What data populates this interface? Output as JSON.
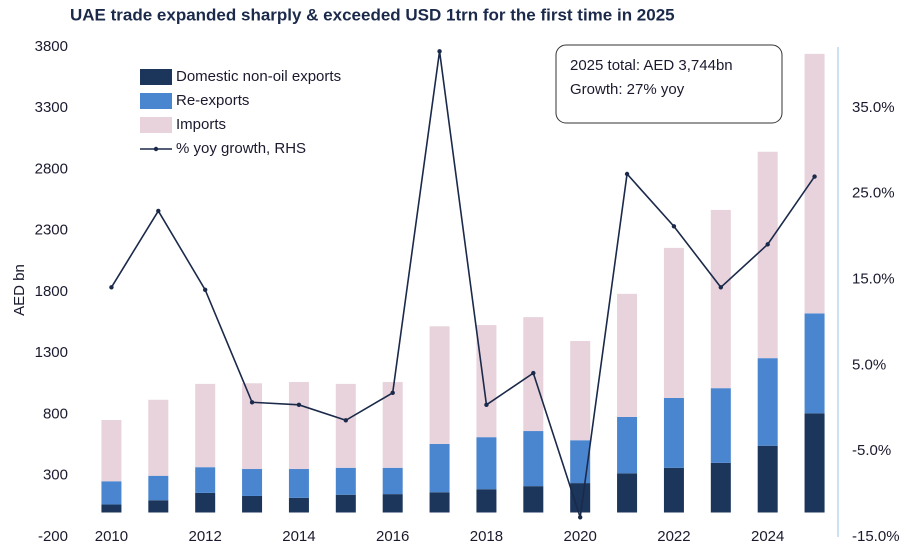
{
  "chart_data": {
    "type": "bar",
    "title": "UAE trade expanded sharply & exceeded USD 1trn for the first time in 2025",
    "ylabel": "AED bn",
    "annotation": [
      "2025 total: AED 3,744bn",
      "Growth: 27% yoy"
    ],
    "categories": [
      "2010",
      null,
      "2012",
      null,
      "2014",
      null,
      "2016",
      null,
      "2018",
      null,
      "2020",
      null,
      "2022",
      null,
      "2024",
      null
    ],
    "stacked": true,
    "legend": "upper left",
    "series": [
      {
        "name": "Domestic non-oil exports",
        "color": "#1b355b",
        "values": [
          65,
          100,
          160,
          135,
          120,
          145,
          150,
          165,
          190,
          215,
          240,
          320,
          365,
          405,
          545,
          810
        ]
      },
      {
        "name": "Re-exports",
        "color": "#4a86d0",
        "values": [
          190,
          200,
          210,
          220,
          235,
          220,
          215,
          395,
          425,
          450,
          350,
          460,
          570,
          610,
          715,
          815
        ]
      },
      {
        "name": "Imports",
        "color": "#e8d3dc",
        "values": [
          500,
          620,
          680,
          700,
          710,
          685,
          700,
          960,
          915,
          930,
          810,
          1005,
          1225,
          1455,
          1685,
          2119
        ]
      },
      {
        "name": "% yoy growth, RHS",
        "type": "line",
        "axis": "y2",
        "color": "#1b2a4a",
        "values": [
          14.1,
          23.0,
          13.8,
          0.7,
          0.4,
          -1.4,
          1.8,
          41.6,
          0.4,
          4.1,
          -12.7,
          27.3,
          21.2,
          14.1,
          19.1,
          27.0
        ]
      }
    ],
    "ylim": [
      -200,
      3800
    ],
    "yticks": [
      -200,
      300,
      800,
      1300,
      1800,
      2300,
      2800,
      3300,
      3800
    ],
    "y2lim": [
      -15,
      42.1
    ],
    "y2ticks": [
      {
        "value": -15,
        "label": "-15.0%"
      },
      {
        "value": -5,
        "label": "-5.0%"
      },
      {
        "value": 5,
        "label": "5.0%"
      },
      {
        "value": 15,
        "label": "15.0%"
      },
      {
        "value": 25,
        "label": "25.0%"
      },
      {
        "value": 35,
        "label": "35.0%"
      }
    ],
    "grid": false
  }
}
